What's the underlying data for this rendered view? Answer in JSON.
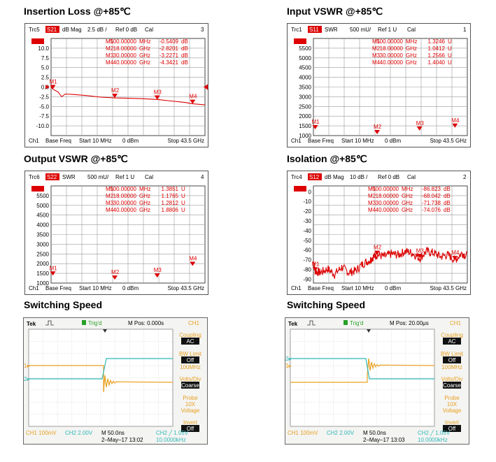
{
  "titles": {
    "p1": "Insertion Loss @+85℃",
    "p2": "Input VSWR @+85℃",
    "p3": "Output VSWR @+85℃",
    "p4": "Isolation @+85℃",
    "p5": "Switching Speed",
    "p6": "Switching Speed"
  },
  "colors": {
    "trace": "#dd0000",
    "grid": "#9a9a9a",
    "scope_ch1": "#e8a020",
    "scope_ch2": "#2fb8b8",
    "scope_bg": "#ffffff"
  },
  "vna_panels": [
    {
      "header": {
        "trc": "Trc5",
        "param": "S21",
        "fmt": "dB Mag",
        "scale": "2.5 dB /",
        "ref": "Ref 0 dB",
        "cal": "Cal",
        "num": "3"
      },
      "footer": {
        "ch": "Ch1",
        "base": "Base Freq",
        "start": "Start  10 MHz",
        "pow": "0 dBm",
        "stop": "Stop  43.5 GHz"
      },
      "marker_table": [
        [
          "M1",
          "500.00000",
          "MHz",
          "-0.5409",
          "dB"
        ],
        [
          "M2",
          "18.00000",
          "GHz",
          "-2.8201",
          "dB"
        ],
        [
          "M3",
          "30.00000",
          "GHz",
          "-3.2271",
          "dB"
        ],
        [
          "M4",
          "40.00000",
          "GHz",
          "-4.3421",
          "dB"
        ]
      ],
      "yticks": [
        "10.0",
        "7.5",
        "5.0",
        "2.5",
        "0.0",
        "-2.5",
        "-5.0",
        "-7.5",
        "-10.0"
      ],
      "chart_data": {
        "type": "line",
        "xlim": [
          0,
          43.5
        ],
        "ylim": [
          -12.5,
          12.5
        ],
        "xunit": "GHz",
        "series": [
          {
            "x": [
              0.01,
              0.5,
              2,
              3,
              4,
              6,
              10,
              14,
              18,
              22,
              26,
              30,
              34,
              38,
              40,
              43.5
            ],
            "y": [
              0,
              -0.54,
              -1.3,
              -2.5,
              -1.8,
              -1.9,
              -2.2,
              -2.6,
              -2.8,
              -2.9,
              -3.0,
              -3.2,
              -3.6,
              -4.0,
              -4.3,
              -4.6
            ]
          }
        ],
        "markers": [
          {
            "label": "M1",
            "x": 0.5,
            "y": -0.54
          },
          {
            "label": "M2",
            "x": 18,
            "y": -2.82
          },
          {
            "label": "M3",
            "x": 30,
            "y": -3.23
          },
          {
            "label": "M4",
            "x": 40,
            "y": -4.34
          }
        ]
      }
    },
    {
      "header": {
        "trc": "Trc1",
        "param": "S11",
        "fmt": "SWR",
        "scale": "500 mU/",
        "ref": "Ref 1 U",
        "cal": "Cal",
        "num": "1"
      },
      "footer": {
        "ch": "Ch1",
        "base": "Base Freq",
        "start": "Start  10 MHz",
        "pow": "0 dBm",
        "stop": "Stop  43.5 GHz"
      },
      "marker_table": [
        [
          "M1",
          "500.00000",
          "MHz",
          "1.3246",
          "U"
        ],
        [
          "M2",
          "18.00000",
          "GHz",
          "1.0412",
          "U"
        ],
        [
          "M3",
          "30.00000",
          "GHz",
          "1.2566",
          "U"
        ],
        [
          "M4",
          "40.00000",
          "GHz",
          "1.4040",
          "U"
        ]
      ],
      "yticks": [
        "5500",
        "5000",
        "4500",
        "4000",
        "3500",
        "3000",
        "2500",
        "2000",
        "1500",
        "1000"
      ],
      "chart_data": {
        "type": "line",
        "xlim": [
          0,
          43.5
        ],
        "ylim": [
          1000,
          6000
        ],
        "xunit": "GHz",
        "series": [
          {
            "x": [],
            "y": []
          }
        ],
        "markers": [
          {
            "label": "M1",
            "x": 0.5,
            "y": 1324.6
          },
          {
            "label": "M2",
            "x": 18,
            "y": 1041.2
          },
          {
            "label": "M3",
            "x": 30,
            "y": 1256.6
          },
          {
            "label": "M4",
            "x": 40,
            "y": 1404.0
          }
        ]
      }
    },
    {
      "header": {
        "trc": "Trc6",
        "param": "S22",
        "fmt": "SWR",
        "scale": "500 mU/",
        "ref": "Ref 1 U",
        "cal": "Cal",
        "num": "4"
      },
      "footer": {
        "ch": "Ch1",
        "base": "Base Freq",
        "start": "Start  10 MHz",
        "pow": "0 dBm",
        "stop": "Stop  43.5 GHz"
      },
      "marker_table": [
        [
          "M1",
          "500.00000",
          "MHz",
          "1.3851",
          "U"
        ],
        [
          "M2",
          "18.00000",
          "GHz",
          "1.1765",
          "U"
        ],
        [
          "M3",
          "30.00000",
          "GHz",
          "1.2812",
          "U"
        ],
        [
          "M4",
          "40.00000",
          "GHz",
          "1.8806",
          "U"
        ]
      ],
      "yticks": [
        "5500",
        "5000",
        "4500",
        "4000",
        "3500",
        "3000",
        "2500",
        "2000",
        "1500",
        "1000"
      ],
      "chart_data": {
        "type": "line",
        "xlim": [
          0,
          43.5
        ],
        "ylim": [
          1000,
          6000
        ],
        "xunit": "GHz",
        "series": [
          {
            "x": [],
            "y": []
          }
        ],
        "markers": [
          {
            "label": "M1",
            "x": 0.5,
            "y": 1385.1
          },
          {
            "label": "M2",
            "x": 18,
            "y": 1176.5
          },
          {
            "label": "M3",
            "x": 30,
            "y": 1281.2
          },
          {
            "label": "M4",
            "x": 40,
            "y": 1880.6
          }
        ]
      }
    },
    {
      "header": {
        "trc": "Trc4",
        "param": "S12",
        "fmt": "dB Mag",
        "scale": "10 dB /",
        "ref": "Ref 0 dB",
        "cal": "Cal",
        "num": "2"
      },
      "footer": {
        "ch": "Ch1",
        "base": "Base Freq",
        "start": "Start  10 MHz",
        "pow": "0 dBm",
        "stop": "Stop  43.5 GHz"
      },
      "marker_table": [
        [
          "M1",
          "500.00000",
          "MHz",
          "-86.823",
          "dB"
        ],
        [
          "M2",
          "18.00000",
          "GHz",
          "-68.042",
          "dB"
        ],
        [
          "M3",
          "30.00000",
          "GHz",
          "-71.738",
          "dB"
        ],
        [
          "M4",
          "40.00000",
          "GHz",
          "-74.076",
          "dB"
        ]
      ],
      "yticks": [
        "0",
        "-10",
        "-20",
        "-30",
        "-40",
        "-50",
        "-60",
        "-70",
        "-80",
        "-90"
      ],
      "chart_data": {
        "type": "line",
        "xlim": [
          0,
          43.5
        ],
        "ylim": [
          -100,
          10
        ],
        "xunit": "GHz",
        "series": [
          {
            "x": [
              0.01,
              0.5,
              2,
              4,
              6,
              8,
              10,
              12,
              14,
              16,
              17,
              18,
              20,
              22,
              24,
              26,
              28,
              30,
              32,
              34,
              36,
              38,
              40,
              42,
              43.5
            ],
            "y": [
              -75,
              -86.8,
              -88,
              -84,
              -90,
              -82,
              -88,
              -86,
              -78,
              -74,
              -70,
              -68,
              -70,
              -67,
              -68,
              -64,
              -66,
              -71.7,
              -64,
              -66,
              -70,
              -68,
              -74.1,
              -66,
              -70
            ]
          }
        ],
        "markers": [
          {
            "label": "M1",
            "x": 0.5,
            "y": -86.82
          },
          {
            "label": "M2",
            "x": 18,
            "y": -68.04
          },
          {
            "label": "M3",
            "x": 30,
            "y": -71.74
          },
          {
            "label": "M4",
            "x": 40,
            "y": -74.08
          }
        ]
      }
    }
  ],
  "scopes": [
    {
      "brand": "Tek",
      "trig": "Trig'd",
      "mpos": "M Pos: 0.000s",
      "chan": "CH1",
      "side": [
        {
          "label": "Coupling",
          "value": "AC"
        },
        {
          "label": "BW Limit",
          "value": "Off",
          "sub": "100MHz"
        },
        {
          "label": "Volts/Div",
          "value": "Coarse"
        },
        {
          "label": "Probe",
          "value": "",
          "sub": "10X\nVoltage"
        },
        {
          "label": "Invert",
          "value": "Off"
        }
      ],
      "bottom": {
        "ch1": "CH1  100mV",
        "ch2": "CH2  2.00V",
        "time": "M 50.0ns",
        "date": "2–May–17 13:02",
        "trig": "CH2 ╱ 1.05V",
        "freq": "10.0000kHz"
      },
      "chart_data": {
        "type": "line",
        "series": [
          {
            "name": "CH1",
            "values": []
          },
          {
            "name": "CH2",
            "values": []
          }
        ]
      }
    },
    {
      "brand": "Tek",
      "trig": "Trig'd",
      "mpos": "M Pos: 20.00μs",
      "chan": "CH1",
      "side": [
        {
          "label": "Coupling",
          "value": "AC"
        },
        {
          "label": "BW Limit",
          "value": "Off",
          "sub": "100MHz"
        },
        {
          "label": "Volts/Div",
          "value": "Coarse"
        },
        {
          "label": "Probe",
          "value": "",
          "sub": "10X\nVoltage"
        },
        {
          "label": "Invert",
          "value": "Off"
        }
      ],
      "bottom": {
        "ch1": "CH1  100mV",
        "ch2": "CH2  2.00V",
        "time": "M 50.0ns",
        "date": "2–May–17 13:03",
        "trig": "CH2 ╱ 1.05V",
        "freq": "10.0000kHz"
      },
      "chart_data": {
        "type": "line",
        "series": [
          {
            "name": "CH1",
            "values": []
          },
          {
            "name": "CH2",
            "values": []
          }
        ]
      }
    }
  ]
}
